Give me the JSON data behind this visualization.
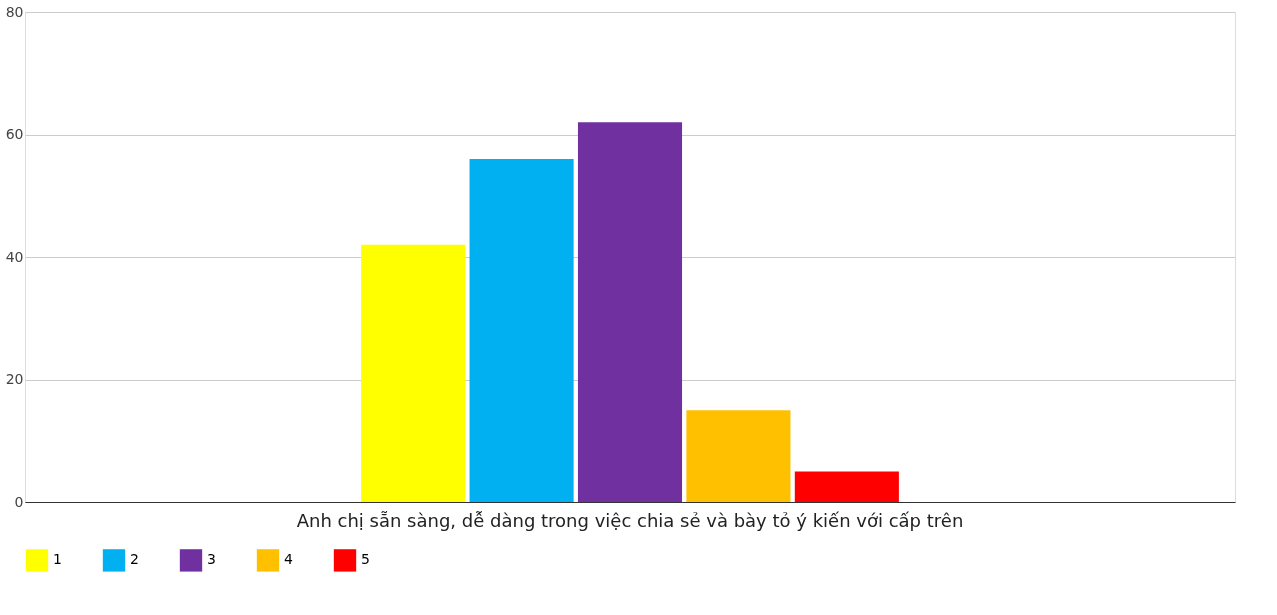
{
  "chart_data": {
    "type": "bar",
    "categories": [
      "Anh chị sẵn sàng, dễ dàng trong việc chia sẻ và bày tỏ ý kiến với cấp trên"
    ],
    "series": [
      {
        "name": "1",
        "color": "#ffff00",
        "values": [
          42
        ]
      },
      {
        "name": "2",
        "color": "#00b0f0",
        "values": [
          56
        ]
      },
      {
        "name": "3",
        "color": "#7030a0",
        "values": [
          62
        ]
      },
      {
        "name": "4",
        "color": "#ffc000",
        "values": [
          15
        ]
      },
      {
        "name": "5",
        "color": "#ff0000",
        "values": [
          5
        ]
      }
    ],
    "ylim": [
      0,
      80
    ],
    "yticks": [
      0,
      20,
      40,
      60,
      80
    ],
    "grid": "y",
    "legend": "bottom"
  }
}
